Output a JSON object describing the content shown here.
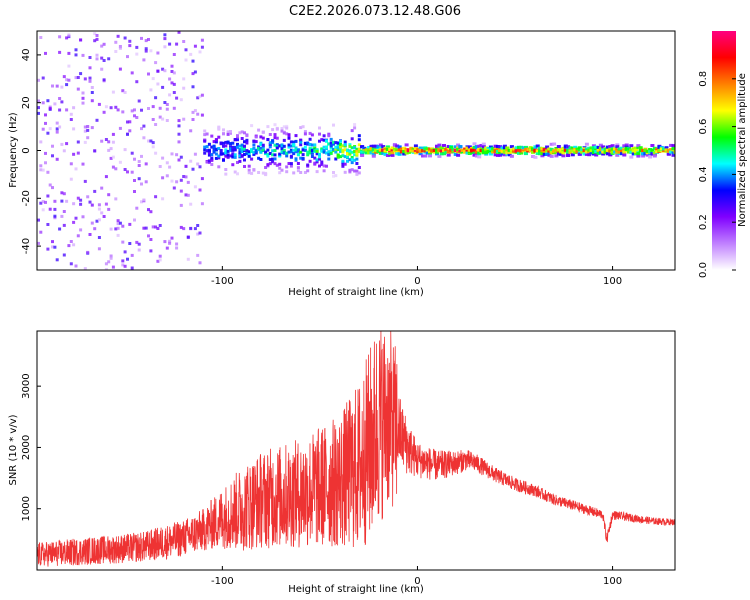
{
  "title": "C2E2.2026.073.12.48.G06",
  "chart_data": [
    {
      "type": "heatmap",
      "name": "spectrogram",
      "xlabel": "Height of straight line (km)",
      "ylabel": "Frequency (Hz)",
      "xlim": [
        -195,
        132
      ],
      "ylim": [
        -50,
        50
      ],
      "xticks": [
        -100,
        0,
        100
      ],
      "xticklabels": [
        "-100",
        "0",
        "100"
      ],
      "yticks": [
        -40,
        -20,
        0,
        20,
        40
      ],
      "yticklabels": [
        "-40",
        "-20",
        "0",
        "20",
        "40"
      ],
      "colorbar": {
        "label": "Normalized spectral amplitude",
        "range": [
          0,
          1
        ],
        "ticks": [
          0.0,
          0.2,
          0.4,
          0.6,
          0.8
        ],
        "ticklabels": [
          "0.0",
          "0.2",
          "0.4",
          "0.6",
          "0.8"
        ],
        "stops": [
          "#ffffff",
          "#c080ff",
          "#8000ff",
          "#0000ff",
          "#00ffff",
          "#00ff00",
          "#ffff00",
          "#ff8000",
          "#ff0000",
          "#ff0080"
        ]
      },
      "ridge": [
        {
          "x": -195,
          "amp": 0.08
        },
        {
          "x": -170,
          "amp": 0.15
        },
        {
          "x": -150,
          "amp": 0.25
        },
        {
          "x": -130,
          "amp": 0.35
        },
        {
          "x": -110,
          "amp": 0.4
        },
        {
          "x": -90,
          "amp": 0.45
        },
        {
          "x": -70,
          "amp": 0.5
        },
        {
          "x": -50,
          "amp": 0.55
        },
        {
          "x": -30,
          "amp": 0.7
        },
        {
          "x": -20,
          "amp": 0.9
        },
        {
          "x": -10,
          "amp": 0.95
        },
        {
          "x": 0,
          "amp": 0.85
        },
        {
          "x": 10,
          "amp": 0.85
        },
        {
          "x": 20,
          "amp": 0.9
        },
        {
          "x": 40,
          "amp": 0.8
        },
        {
          "x": 55,
          "amp": 0.95
        },
        {
          "x": 75,
          "amp": 0.8
        },
        {
          "x": 95,
          "amp": 0.75
        },
        {
          "x": 110,
          "amp": 0.85
        },
        {
          "x": 132,
          "amp": 0.75
        }
      ]
    },
    {
      "type": "line",
      "name": "snr",
      "xlabel": "Height of straight line (km)",
      "ylabel": "SNR (10 * v/v)",
      "xlim": [
        -195,
        132
      ],
      "ylim": [
        0,
        3900
      ],
      "xticks": [
        -100,
        0,
        100
      ],
      "xticklabels": [
        "-100",
        "0",
        "100"
      ],
      "yticks": [
        1000,
        2000,
        3000
      ],
      "yticklabels": [
        "1000",
        "2000",
        "3000"
      ],
      "color": "#ee3333",
      "series": [
        {
          "name": "SNR",
          "x": [
            -195,
            -180,
            -165,
            -150,
            -140,
            -130,
            -120,
            -110,
            -100,
            -90,
            -80,
            -70,
            -60,
            -50,
            -40,
            -30,
            -25,
            -20,
            -15,
            -10,
            -5,
            0,
            10,
            20,
            25,
            30,
            40,
            50,
            60,
            70,
            80,
            90,
            95,
            97,
            100,
            110,
            120,
            132
          ],
          "values": [
            250,
            280,
            320,
            350,
            380,
            450,
            520,
            650,
            850,
            1000,
            1150,
            1200,
            1250,
            1350,
            1450,
            1700,
            2000,
            2400,
            2500,
            2300,
            2000,
            1800,
            1700,
            1750,
            1800,
            1750,
            1550,
            1400,
            1300,
            1150,
            1050,
            950,
            900,
            500,
            900,
            850,
            800,
            780
          ],
          "noise": [
            200,
            220,
            230,
            240,
            250,
            280,
            300,
            350,
            500,
            700,
            800,
            850,
            900,
            1000,
            1100,
            1400,
            1600,
            1700,
            1500,
            1300,
            900,
            600,
            500,
            400,
            350,
            300,
            250,
            220,
            200,
            180,
            170,
            160,
            150,
            200,
            150,
            130,
            120,
            110
          ]
        }
      ]
    }
  ]
}
